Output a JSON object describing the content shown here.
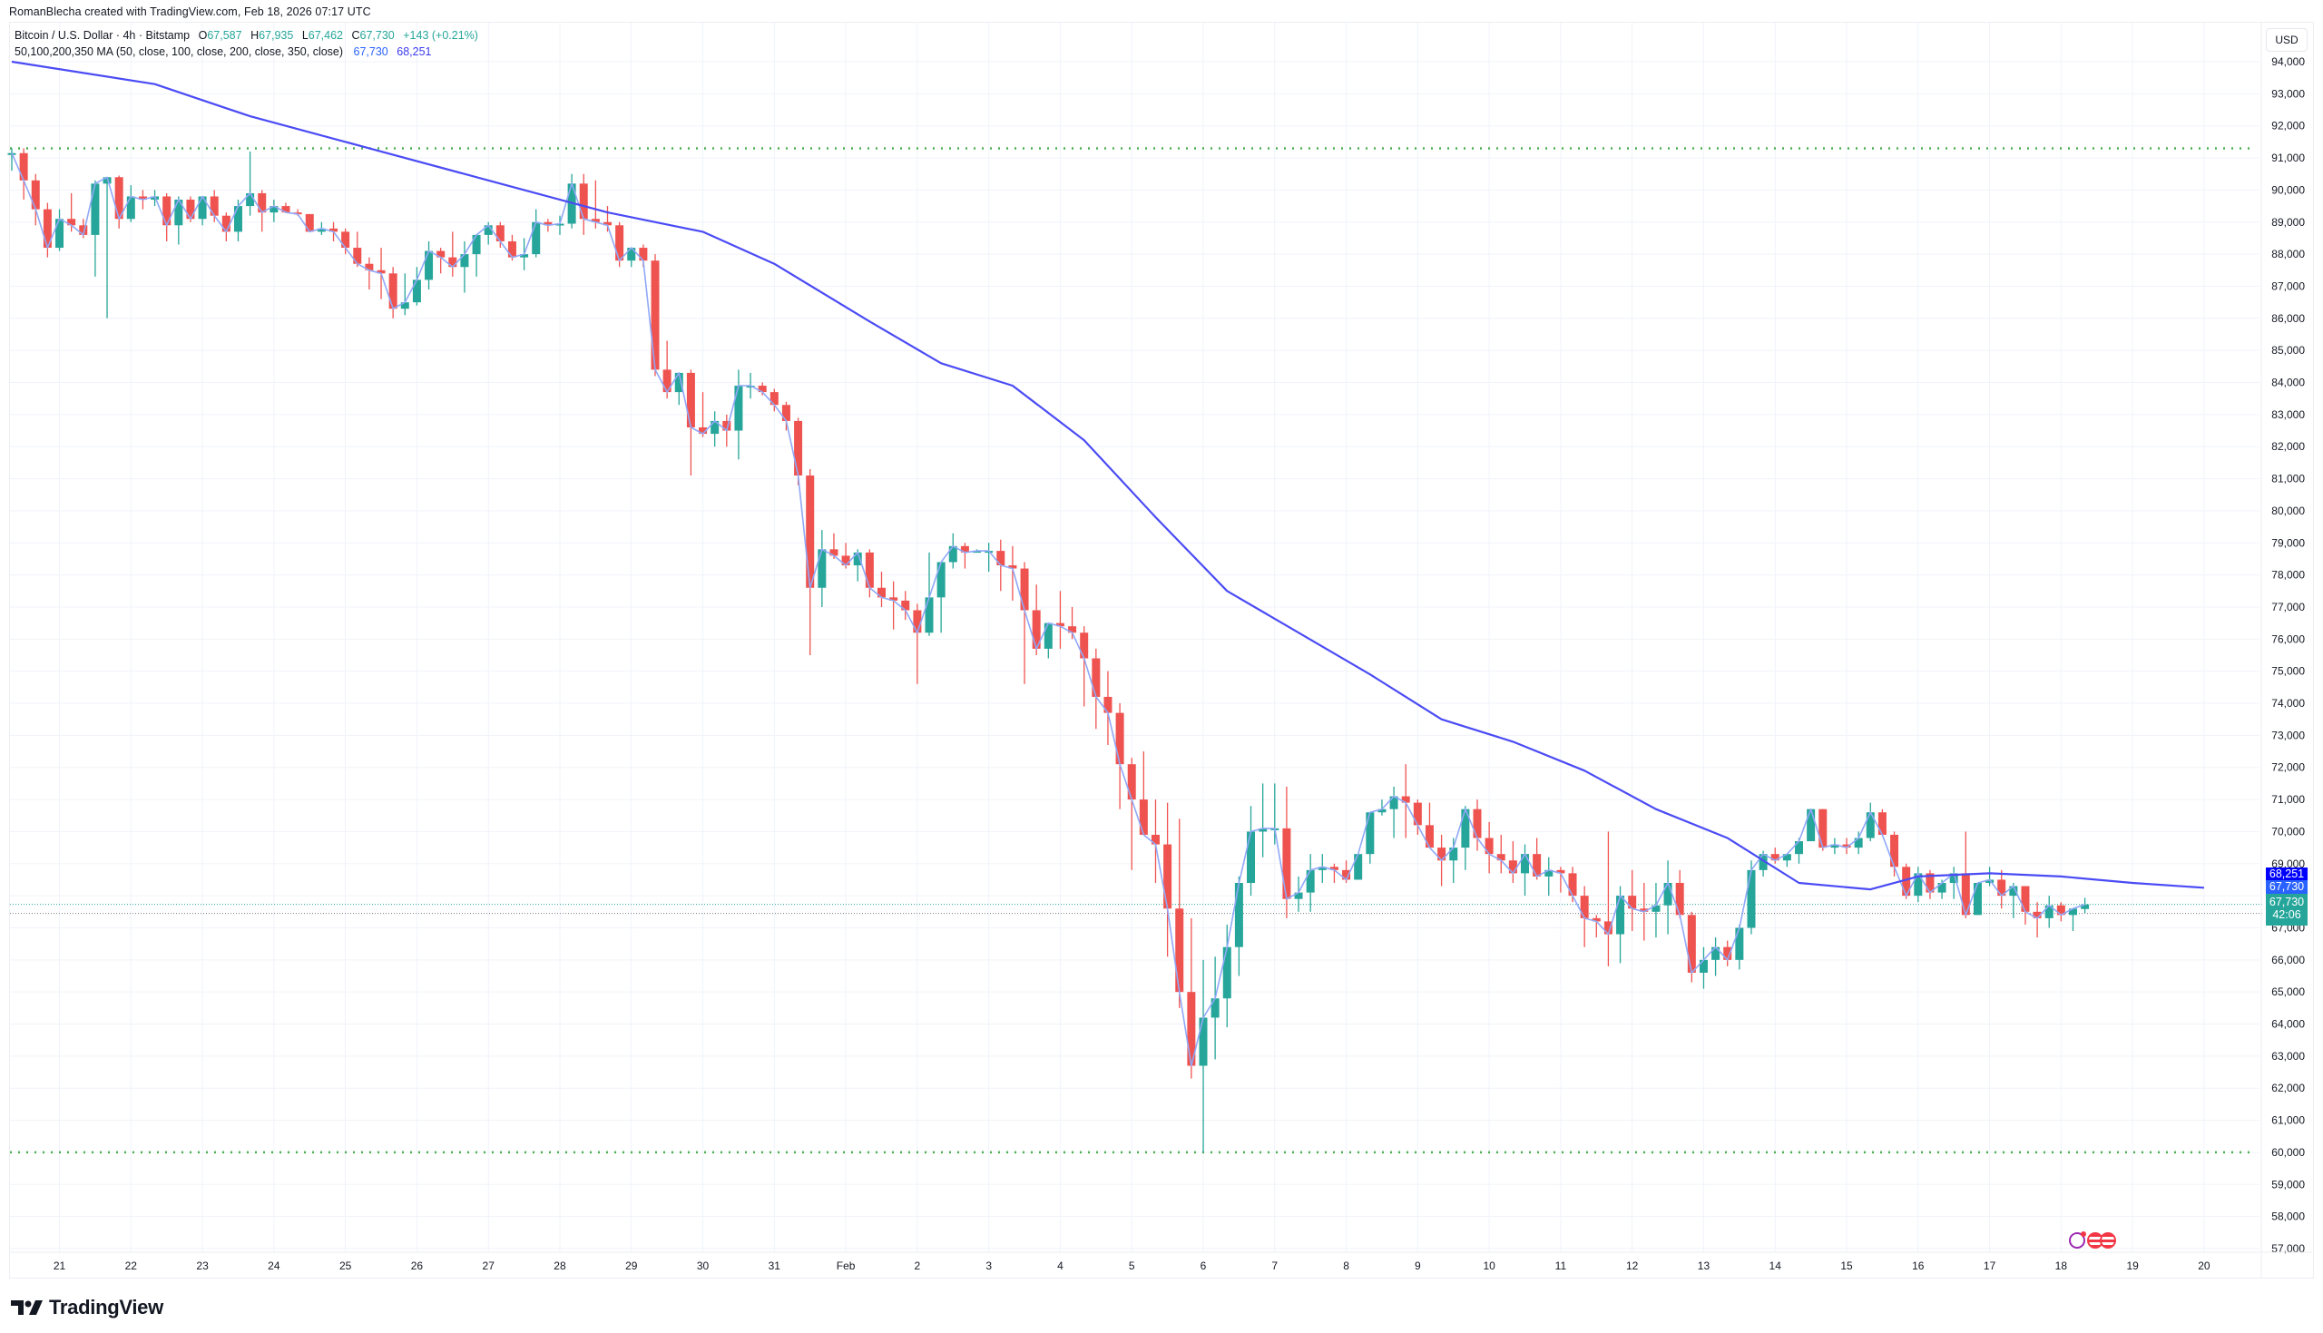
{
  "attribution": "RomanBlecha created with TradingView.com, Feb 18, 2026 07:17 UTC",
  "legend": {
    "symbol": "Bitcoin / U.S. Dollar · 4h · Bitstamp",
    "o_label": "O",
    "o": "67,587",
    "h_label": "H",
    "h": "67,935",
    "l_label": "L",
    "l": "67,462",
    "c_label": "C",
    "c": "67,730",
    "change": "+143 (+0.21%)",
    "ma_label": "50,100,200,350 MA (50, close, 100, close, 200, close, 350, close)",
    "ma_val_1": "67,730",
    "ma_val_2": "68,251"
  },
  "price_axis": {
    "currency": "USD",
    "tag_ma": "68,251",
    "tag_ma50": "67,730",
    "tag_last": "67,730",
    "tag_countdown": "42:06"
  },
  "colors": {
    "up": "#26a69a",
    "down": "#ef5350",
    "ma_slow": "#4b4bf5",
    "ma_fast": "#90a8f8",
    "support_lines": "#4caf50",
    "grid": "#f0f3fa"
  },
  "branding": {
    "logo_text": "TradingView"
  },
  "chart_data": {
    "type": "candlestick",
    "title": "Bitcoin / U.S. Dollar · 4h · Bitstamp",
    "xlabel": "",
    "ylabel": "USD",
    "ylim": [
      56500,
      94700
    ],
    "y_ticks": [
      57000,
      58000,
      59000,
      60000,
      61000,
      62000,
      63000,
      64000,
      65000,
      66000,
      67000,
      68000,
      69000,
      70000,
      71000,
      72000,
      73000,
      74000,
      75000,
      76000,
      77000,
      78000,
      79000,
      80000,
      81000,
      82000,
      83000,
      84000,
      85000,
      86000,
      87000,
      88000,
      89000,
      90000,
      91000,
      92000,
      93000,
      94000
    ],
    "x_ticks": [
      {
        "label": "21",
        "bar": 4
      },
      {
        "label": "22",
        "bar": 10
      },
      {
        "label": "23",
        "bar": 16
      },
      {
        "label": "24",
        "bar": 22
      },
      {
        "label": "25",
        "bar": 28
      },
      {
        "label": "26",
        "bar": 34
      },
      {
        "label": "27",
        "bar": 40
      },
      {
        "label": "28",
        "bar": 46
      },
      {
        "label": "29",
        "bar": 52
      },
      {
        "label": "30",
        "bar": 58
      },
      {
        "label": "31",
        "bar": 64
      },
      {
        "label": "Feb",
        "bar": 70
      },
      {
        "label": "2",
        "bar": 76
      },
      {
        "label": "3",
        "bar": 82
      },
      {
        "label": "4",
        "bar": 88
      },
      {
        "label": "5",
        "bar": 94
      },
      {
        "label": "6",
        "bar": 100
      },
      {
        "label": "7",
        "bar": 106
      },
      {
        "label": "8",
        "bar": 112
      },
      {
        "label": "9",
        "bar": 118
      },
      {
        "label": "10",
        "bar": 124
      },
      {
        "label": "11",
        "bar": 130
      },
      {
        "label": "12",
        "bar": 136
      },
      {
        "label": "13",
        "bar": 142
      },
      {
        "label": "14",
        "bar": 148
      },
      {
        "label": "15",
        "bar": 154
      },
      {
        "label": "16",
        "bar": 160
      },
      {
        "label": "17",
        "bar": 166
      },
      {
        "label": "18",
        "bar": 172
      },
      {
        "label": "19",
        "bar": 178
      },
      {
        "label": "20",
        "bar": 184
      }
    ],
    "horizontal_lines": [
      {
        "price": 91300,
        "style": "dotted",
        "color": "#4caf50"
      },
      {
        "price": 60000,
        "style": "dotted",
        "color": "#4caf50"
      },
      {
        "price": 67730,
        "style": "dotted",
        "color": "#26a69a"
      },
      {
        "price": 67450,
        "style": "dotted",
        "color": "#787b86"
      }
    ],
    "series_ohlc": [
      [
        91100,
        91300,
        90600,
        91150
      ],
      [
        91150,
        91300,
        89700,
        90300
      ],
      [
        90300,
        90500,
        88900,
        89400
      ],
      [
        89400,
        89600,
        87900,
        88200
      ],
      [
        88200,
        89400,
        88100,
        89100
      ],
      [
        89100,
        89900,
        88700,
        88900
      ],
      [
        88900,
        89100,
        88500,
        88600
      ],
      [
        88600,
        90300,
        87300,
        90200
      ],
      [
        90200,
        90300,
        86000,
        90400
      ],
      [
        90400,
        90450,
        88800,
        89100
      ],
      [
        89100,
        90150,
        89000,
        89800
      ],
      [
        89800,
        90000,
        89400,
        89700
      ],
      [
        89700,
        90000,
        89500,
        89800
      ],
      [
        89800,
        89900,
        88400,
        88900
      ],
      [
        88900,
        89800,
        88300,
        89700
      ],
      [
        89700,
        89800,
        89000,
        89100
      ],
      [
        89100,
        89800,
        88900,
        89800
      ],
      [
        89800,
        90000,
        89000,
        89200
      ],
      [
        89200,
        89300,
        88400,
        88700
      ],
      [
        88700,
        89700,
        88400,
        89500
      ],
      [
        89500,
        91200,
        89200,
        89900
      ],
      [
        89900,
        90000,
        88700,
        89300
      ],
      [
        89300,
        89700,
        89000,
        89500
      ],
      [
        89500,
        89600,
        89300,
        89300
      ],
      [
        89300,
        89400,
        89200,
        89250
      ],
      [
        89250,
        89250,
        88800,
        88700
      ],
      [
        88700,
        89000,
        88600,
        88800
      ],
      [
        88800,
        89000,
        88400,
        88700
      ],
      [
        88700,
        88800,
        88000,
        88200
      ],
      [
        88200,
        88700,
        87600,
        87700
      ],
      [
        87700,
        87900,
        86900,
        87500
      ],
      [
        87500,
        88200,
        86600,
        87400
      ],
      [
        87400,
        87600,
        86000,
        86300
      ],
      [
        86300,
        87400,
        86100,
        86500
      ],
      [
        86500,
        87600,
        86400,
        87200
      ],
      [
        87200,
        88400,
        86900,
        88100
      ],
      [
        88100,
        88200,
        87400,
        87900
      ],
      [
        87900,
        88700,
        87300,
        87600
      ],
      [
        87600,
        88400,
        86800,
        88000
      ],
      [
        88000,
        88300,
        87300,
        88600
      ],
      [
        88600,
        89000,
        88300,
        88900
      ],
      [
        88900,
        89000,
        88200,
        88400
      ],
      [
        88400,
        88600,
        87800,
        87900
      ],
      [
        87900,
        88500,
        87500,
        88000
      ],
      [
        88000,
        89400,
        87900,
        89000
      ],
      [
        89000,
        89100,
        88700,
        88900
      ],
      [
        88900,
        89200,
        88600,
        88950
      ],
      [
        88950,
        90500,
        88800,
        90200
      ],
      [
        90200,
        90500,
        88600,
        89100
      ],
      [
        89100,
        90300,
        88800,
        89000
      ],
      [
        89000,
        89500,
        88700,
        88900
      ],
      [
        88900,
        89000,
        87600,
        87800
      ],
      [
        87800,
        88200,
        87600,
        88200
      ],
      [
        88200,
        88300,
        87600,
        87800
      ],
      [
        87800,
        88000,
        84200,
        84400
      ],
      [
        84400,
        85300,
        83500,
        83700
      ],
      [
        83700,
        84100,
        83300,
        84300
      ],
      [
        84300,
        84400,
        81100,
        82600
      ],
      [
        82600,
        83700,
        82300,
        82400
      ],
      [
        82400,
        83100,
        82000,
        82800
      ],
      [
        82800,
        83000,
        82000,
        82500
      ],
      [
        82500,
        84400,
        81600,
        83900
      ],
      [
        83900,
        84300,
        83500,
        83900
      ],
      [
        83900,
        84000,
        83600,
        83700
      ],
      [
        83700,
        83800,
        83100,
        83300
      ],
      [
        83300,
        83400,
        82500,
        82800
      ],
      [
        82800,
        82900,
        80800,
        81100
      ],
      [
        81100,
        81300,
        75500,
        77600
      ],
      [
        77600,
        79400,
        77000,
        78800
      ],
      [
        78800,
        79300,
        78500,
        78600
      ],
      [
        78600,
        79000,
        78200,
        78300
      ],
      [
        78300,
        78800,
        77800,
        78700
      ],
      [
        78700,
        78800,
        77300,
        77600
      ],
      [
        77600,
        78100,
        77000,
        77300
      ],
      [
        77300,
        77800,
        76300,
        77200
      ],
      [
        77200,
        77500,
        76600,
        76900
      ],
      [
        76900,
        77100,
        74600,
        76200
      ],
      [
        76200,
        78700,
        76100,
        77300
      ],
      [
        77300,
        78000,
        76200,
        78400
      ],
      [
        78400,
        79300,
        78200,
        78900
      ],
      [
        78900,
        79000,
        78200,
        78700
      ],
      [
        78700,
        78800,
        78700,
        78750
      ],
      [
        78750,
        79000,
        78100,
        78750
      ],
      [
        78750,
        79100,
        77500,
        78300
      ],
      [
        78300,
        78900,
        77200,
        78200
      ],
      [
        78200,
        78400,
        74600,
        76900
      ],
      [
        76900,
        77700,
        75500,
        75700
      ],
      [
        75700,
        76100,
        75400,
        76500
      ],
      [
        76500,
        77500,
        75700,
        76400
      ],
      [
        76400,
        77000,
        76000,
        76200
      ],
      [
        76200,
        76400,
        73900,
        75400
      ],
      [
        75400,
        75700,
        73200,
        74200
      ],
      [
        74200,
        75000,
        72700,
        73700
      ],
      [
        73700,
        74000,
        70700,
        72100
      ],
      [
        72100,
        72300,
        68800,
        71000
      ],
      [
        71000,
        72500,
        70400,
        69900
      ],
      [
        69900,
        71000,
        68400,
        69600
      ],
      [
        69600,
        70900,
        66100,
        67600
      ],
      [
        67600,
        70400,
        64500,
        65000
      ],
      [
        65000,
        67300,
        62300,
        62700
      ],
      [
        62700,
        66000,
        60000,
        64200
      ],
      [
        64200,
        66100,
        62900,
        64800
      ],
      [
        64800,
        67100,
        63900,
        66400
      ],
      [
        66400,
        68600,
        65500,
        68400
      ],
      [
        68400,
        70800,
        68000,
        70000
      ],
      [
        70000,
        71500,
        69200,
        70100
      ],
      [
        70100,
        71500,
        69600,
        70100
      ],
      [
        70100,
        71400,
        67300,
        67900
      ],
      [
        67900,
        68600,
        67500,
        68100
      ],
      [
        68100,
        69300,
        67500,
        68800
      ],
      [
        68800,
        69300,
        68400,
        68900
      ],
      [
        68900,
        69000,
        68400,
        68800
      ],
      [
        68800,
        69100,
        68400,
        68500
      ],
      [
        68500,
        69300,
        68500,
        69300
      ],
      [
        69300,
        70100,
        69000,
        70600
      ],
      [
        70600,
        71000,
        70500,
        70700
      ],
      [
        70700,
        71400,
        69800,
        71100
      ],
      [
        71100,
        72100,
        69800,
        70900
      ],
      [
        70900,
        71000,
        69900,
        70200
      ],
      [
        70200,
        70900,
        69500,
        69500
      ],
      [
        69500,
        69900,
        68300,
        69100
      ],
      [
        69100,
        69800,
        68400,
        69500
      ],
      [
        69500,
        70800,
        68800,
        70700
      ],
      [
        70700,
        71000,
        69400,
        69800
      ],
      [
        69800,
        70300,
        68700,
        69300
      ],
      [
        69300,
        69900,
        68700,
        69100
      ],
      [
        69100,
        69700,
        68400,
        68700
      ],
      [
        68700,
        69600,
        68000,
        69300
      ],
      [
        69300,
        69800,
        68500,
        68600
      ],
      [
        68600,
        69200,
        68000,
        68800
      ],
      [
        68800,
        68900,
        68100,
        68700
      ],
      [
        68700,
        68900,
        67800,
        68000
      ],
      [
        68000,
        68300,
        66400,
        67300
      ],
      [
        67300,
        67400,
        66700,
        67200
      ],
      [
        67200,
        70000,
        65800,
        66800
      ],
      [
        66800,
        68300,
        65900,
        68000
      ],
      [
        68000,
        68800,
        66900,
        67600
      ],
      [
        67600,
        68400,
        66600,
        67500
      ],
      [
        67500,
        68400,
        66700,
        67700
      ],
      [
        67700,
        69100,
        66800,
        68400
      ],
      [
        68400,
        68800,
        67300,
        67400
      ],
      [
        67400,
        67500,
        65300,
        65600
      ],
      [
        65600,
        66400,
        65100,
        66000
      ],
      [
        66000,
        66700,
        65500,
        66400
      ],
      [
        66400,
        66600,
        65800,
        66000
      ],
      [
        66000,
        67100,
        65700,
        67000
      ],
      [
        67000,
        69100,
        66800,
        68800
      ],
      [
        68800,
        69400,
        68600,
        69300
      ],
      [
        69300,
        69500,
        69000,
        69100
      ],
      [
        69100,
        69300,
        68900,
        69300
      ],
      [
        69300,
        69800,
        69000,
        69700
      ],
      [
        69700,
        70700,
        69700,
        70700
      ],
      [
        70700,
        70700,
        69400,
        69500
      ],
      [
        69500,
        69800,
        69300,
        69600
      ],
      [
        69600,
        69800,
        69300,
        69500
      ],
      [
        69500,
        70000,
        69300,
        69800
      ],
      [
        69800,
        70900,
        69700,
        70600
      ],
      [
        70600,
        70700,
        69900,
        69900
      ],
      [
        69900,
        70000,
        68600,
        68900
      ],
      [
        68900,
        69000,
        67900,
        68000
      ],
      [
        68000,
        68900,
        67800,
        68700
      ],
      [
        68700,
        68800,
        67900,
        68100
      ],
      [
        68100,
        68500,
        67900,
        68400
      ],
      [
        68400,
        68900,
        67900,
        68700
      ],
      [
        68700,
        70000,
        67300,
        67400
      ],
      [
        67400,
        68300,
        67400,
        68400
      ],
      [
        68400,
        68900,
        68300,
        68500
      ],
      [
        68500,
        68800,
        67600,
        68000
      ],
      [
        68000,
        68400,
        67300,
        68300
      ],
      [
        68300,
        68100,
        67100,
        67500
      ],
      [
        67500,
        67800,
        66700,
        67300
      ],
      [
        67300,
        68000,
        67000,
        67700
      ],
      [
        67700,
        67800,
        67200,
        67400
      ],
      [
        67400,
        67600,
        66900,
        67600
      ],
      [
        67587,
        67935,
        67462,
        67730
      ]
    ],
    "series": [
      {
        "name": "MA 50",
        "last": 67730,
        "color": "#90a8f8"
      },
      {
        "name": "MA 350",
        "last": 68251,
        "color": "#4b4bf5",
        "points": [
          [
            0,
            94000
          ],
          [
            12,
            93300
          ],
          [
            20,
            92300
          ],
          [
            30,
            91300
          ],
          [
            40,
            90300
          ],
          [
            50,
            89300
          ],
          [
            58,
            88700
          ],
          [
            64,
            87700
          ],
          [
            72,
            85900
          ],
          [
            78,
            84600
          ],
          [
            84,
            83900
          ],
          [
            90,
            82200
          ],
          [
            96,
            79800
          ],
          [
            102,
            77500
          ],
          [
            108,
            76200
          ],
          [
            114,
            74900
          ],
          [
            120,
            73500
          ],
          [
            126,
            72800
          ],
          [
            132,
            71900
          ],
          [
            138,
            70700
          ],
          [
            144,
            69800
          ],
          [
            150,
            68400
          ],
          [
            156,
            68200
          ],
          [
            160,
            68600
          ],
          [
            166,
            68700
          ],
          [
            172,
            68600
          ],
          [
            178,
            68400
          ],
          [
            184,
            68251
          ]
        ]
      }
    ]
  }
}
